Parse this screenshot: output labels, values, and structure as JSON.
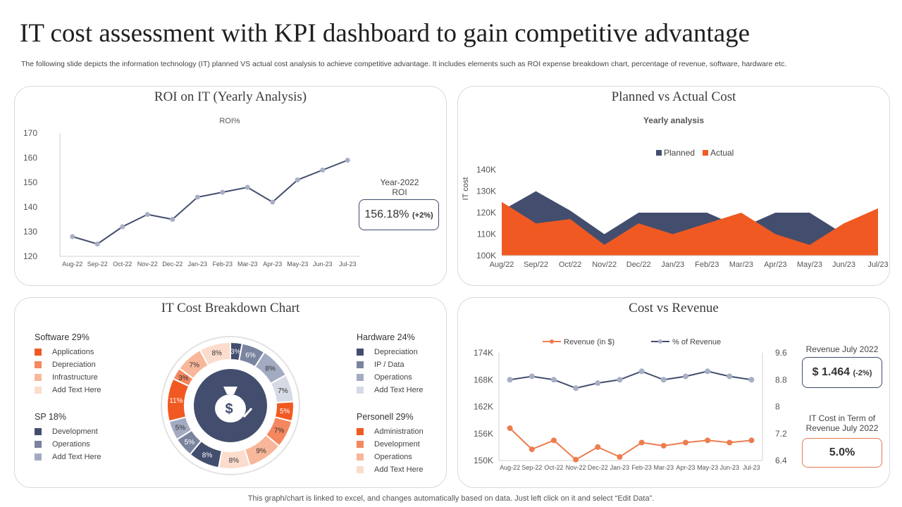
{
  "page": {
    "title": "IT cost assessment with KPI dashboard to gain competitive advantage",
    "subtitle": "The following slide depicts the information technology (IT) planned VS actual cost analysis to achieve competitive advantage. It includes elements such as ROI expense breakdown chart, percentage of revenue, software, hardware etc.",
    "footer": "This graph/chart is linked to excel, and changes automatically based on data. Just left click on it and select “Edit Data”."
  },
  "roi_panel": {
    "title": "ROI on IT (Yearly Analysis)",
    "kpi_label_1": "Year-2022",
    "kpi_label_2": "ROI",
    "kpi_value": "156.18%",
    "kpi_change": "(+2%)"
  },
  "planned_panel": {
    "title": "Planned vs Actual Cost"
  },
  "breakdown_panel": {
    "title": "IT Cost Breakdown Chart"
  },
  "revenue_panel": {
    "title": "Cost vs Revenue",
    "kpi1_label": "Revenue July 2022",
    "kpi1_value": "$ 1.464",
    "kpi1_change": "(-2%)",
    "kpi2_label_1": "IT Cost in Term of",
    "kpi2_label_2": "Revenue July 2022",
    "kpi2_value": "5.0%"
  },
  "colors": {
    "navy": "#434e6e",
    "orange": "#f05a22",
    "slate": "#9aa3bd"
  },
  "chart_data": [
    {
      "id": "roi",
      "type": "line",
      "title": "ROI%",
      "categories": [
        "Aug-22",
        "Sep-22",
        "Oct-22",
        "Nov-22",
        "Dec-22",
        "Jan-23",
        "Feb-23",
        "Mar-23",
        "Apr-23",
        "May-23",
        "Jun-23",
        "Jul-23"
      ],
      "values": [
        128,
        125,
        132,
        137,
        135,
        144,
        146,
        148,
        142,
        151,
        155,
        159
      ],
      "ylim": [
        120,
        170
      ],
      "yticks": [
        120,
        130,
        140,
        150,
        160,
        170
      ],
      "color": "#434e6e"
    },
    {
      "id": "planned_actual",
      "type": "area",
      "title": "Yearly analysis",
      "ylabel": "IT cost",
      "categories": [
        "Aug/22",
        "Sep/22",
        "Oct/22",
        "Nov/22",
        "Dec/22",
        "Jan/23",
        "Feb/23",
        "Mar/23",
        "Apr/23",
        "May/23",
        "Jun/23",
        "Jul/23"
      ],
      "ylim": [
        100000,
        140000
      ],
      "yticks": [
        100000,
        110000,
        120000,
        130000,
        140000
      ],
      "ytick_labels": [
        "100K",
        "110K",
        "120K",
        "130K",
        "140K"
      ],
      "series": [
        {
          "name": "Planned",
          "color": "#434e6e",
          "values": [
            121000,
            130000,
            121000,
            110000,
            120000,
            120000,
            120000,
            113000,
            120000,
            120000,
            110000,
            121000
          ]
        },
        {
          "name": "Actual",
          "color": "#f05a22",
          "values": [
            125000,
            115000,
            117000,
            105000,
            115000,
            110000,
            115000,
            120000,
            110000,
            105000,
            115000,
            122000
          ]
        }
      ]
    },
    {
      "id": "breakdown",
      "type": "pie",
      "title": "IT Cost Breakdown Chart",
      "slices": [
        {
          "label": "3%",
          "value": 3,
          "color": "#434e6e"
        },
        {
          "label": "6%",
          "value": 6,
          "color": "#7a849f"
        },
        {
          "label": "8%",
          "value": 8,
          "color": "#a3abc2"
        },
        {
          "label": "7%",
          "value": 7,
          "color": "#d6dae5"
        },
        {
          "label": "5%",
          "value": 5,
          "color": "#f05a22"
        },
        {
          "label": "7%",
          "value": 7,
          "color": "#f4875f"
        },
        {
          "label": "9%",
          "value": 9,
          "color": "#f8b79a"
        },
        {
          "label": "8%",
          "value": 8,
          "color": "#fcdccd"
        },
        {
          "label": "8%",
          "value": 8,
          "color": "#434e6e"
        },
        {
          "label": "5%",
          "value": 5,
          "color": "#7a849f"
        },
        {
          "label": "5%",
          "value": 5,
          "color": "#a3abc2"
        },
        {
          "label": "11%",
          "value": 11,
          "color": "#f05a22"
        },
        {
          "label": "3%",
          "value": 3,
          "color": "#f4875f"
        },
        {
          "label": "7%",
          "value": 7,
          "color": "#f8b79a"
        },
        {
          "label": "8%",
          "value": 8,
          "color": "#fcdccd"
        }
      ],
      "legend_groups": [
        {
          "title": "Software 29%",
          "items": [
            {
              "label": "Applications",
              "color": "#f05a22"
            },
            {
              "label": "Depreciation",
              "color": "#f4875f"
            },
            {
              "label": "Infrastructure",
              "color": "#f8b79a"
            },
            {
              "label": "Add Text Here",
              "color": "#fcdccd"
            }
          ]
        },
        {
          "title": "SP 18%",
          "items": [
            {
              "label": "Development",
              "color": "#434e6e"
            },
            {
              "label": "Operations",
              "color": "#7a849f"
            },
            {
              "label": "Add Text Here",
              "color": "#a3abc2"
            }
          ]
        },
        {
          "title": "Hardware 24%",
          "items": [
            {
              "label": "Depreciation",
              "color": "#434e6e"
            },
            {
              "label": "IP / Data",
              "color": "#7a849f"
            },
            {
              "label": "Operations",
              "color": "#a3abc2"
            },
            {
              "label": "Add Text Here",
              "color": "#d6dae5"
            }
          ]
        },
        {
          "title": "Personell 29%",
          "items": [
            {
              "label": "Administration",
              "color": "#f05a22"
            },
            {
              "label": "Development",
              "color": "#f4875f"
            },
            {
              "label": "Operations",
              "color": "#f8b79a"
            },
            {
              "label": "Add Text Here",
              "color": "#fcdccd"
            }
          ]
        }
      ]
    },
    {
      "id": "cost_revenue",
      "type": "line",
      "categories": [
        "Aug-22",
        "Sep-22",
        "Oct-22",
        "Nov-22",
        "Dec-22",
        "Jan-23",
        "Feb-23",
        "Mar-23",
        "Apr-23",
        "May-23",
        "Jun-23",
        "Jul-23"
      ],
      "left_axis": {
        "ylim": [
          150000,
          174000
        ],
        "yticks": [
          150000,
          156000,
          162000,
          168000,
          174000
        ],
        "ytick_labels": [
          "150K",
          "156K",
          "162K",
          "168K",
          "174K"
        ]
      },
      "right_axis": {
        "ylim": [
          6.4,
          9.6
        ],
        "yticks": [
          6.4,
          7.2,
          8,
          8.8,
          9.6
        ],
        "ytick_labels": [
          "6.4",
          "7.2",
          "8",
          "8.8",
          "9.6"
        ]
      },
      "series": [
        {
          "name": "Revenue (in $)",
          "axis": "left",
          "color": "#ed7d4e",
          "values": [
            157200,
            152500,
            154500,
            150200,
            153000,
            150800,
            154000,
            153300,
            154000,
            154500,
            154000,
            154500
          ]
        },
        {
          "name": "% of Revenue",
          "axis": "right",
          "color": "#434e6e",
          "values": [
            8.8,
            8.9,
            8.8,
            8.55,
            8.7,
            8.8,
            9.05,
            8.8,
            8.9,
            9.05,
            8.9,
            8.8
          ]
        }
      ]
    }
  ]
}
